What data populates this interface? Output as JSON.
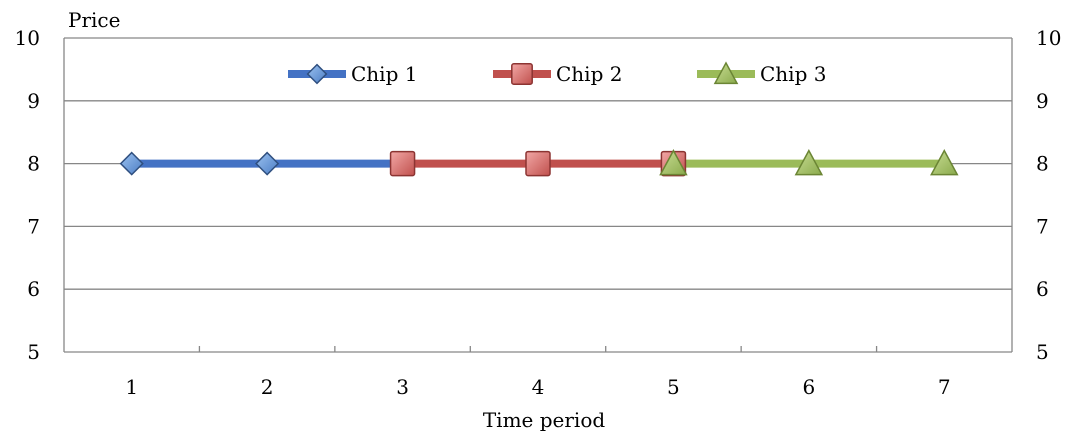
{
  "chart_data": {
    "type": "line",
    "title": "",
    "xlabel": "Time period",
    "ylabel": "Price",
    "x": [
      1,
      2,
      3,
      4,
      5,
      6,
      7
    ],
    "xticks": [
      "1",
      "2",
      "3",
      "4",
      "5",
      "6",
      "7"
    ],
    "yticks": [
      "5",
      "6",
      "7",
      "8",
      "9",
      "10"
    ],
    "ylim": [
      5,
      10
    ],
    "xlim": [
      0.5,
      7.5
    ],
    "grid": true,
    "secondary_y_axis": true,
    "legend_position": "top-center",
    "series": [
      {
        "name": "Chip 1",
        "x": [
          1,
          2,
          3
        ],
        "values": [
          8,
          8,
          8
        ],
        "color": "#4472C4",
        "marker": "diamond"
      },
      {
        "name": "Chip 2",
        "x": [
          3,
          4,
          5
        ],
        "values": [
          8,
          8,
          8
        ],
        "color": "#C0504D",
        "marker": "square"
      },
      {
        "name": "Chip 3",
        "x": [
          5,
          6,
          7
        ],
        "values": [
          8,
          8,
          8
        ],
        "color": "#9BBB59",
        "marker": "triangle"
      }
    ]
  }
}
